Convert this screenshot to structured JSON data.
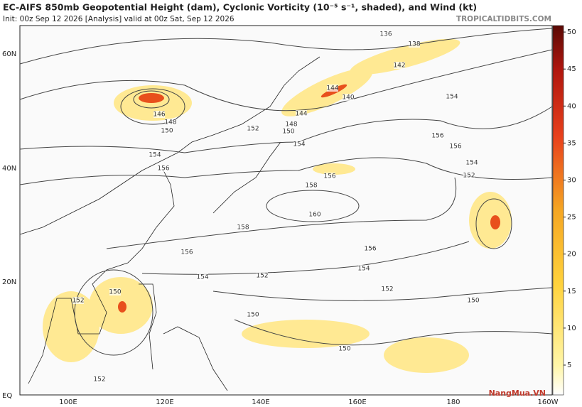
{
  "header": {
    "title": "EC-AIFS 850mb Geopotential Height (dam), Cyclonic Vorticity (10⁻⁵ s⁻¹, shaded), and Wind (kt)",
    "init": "Init: 00z Sep 12 2026   [Analysis]   valid at 00z Sat, Sep 12 2026",
    "source": "TROPICALTIDBITS.COM"
  },
  "map": {
    "lat_labels": [
      "60N",
      "40N",
      "20N",
      "EQ"
    ],
    "lon_labels": [
      "100E",
      "120E",
      "140E",
      "160E",
      "180",
      "160W"
    ],
    "contour_labels": [
      136,
      138,
      142,
      144,
      140,
      154,
      146,
      148,
      150,
      152,
      150,
      148,
      144,
      154,
      156,
      156,
      154,
      152,
      154,
      156,
      156,
      158,
      160,
      158,
      156,
      156,
      154,
      154,
      152,
      152,
      150,
      152,
      150,
      150,
      150,
      152
    ]
  },
  "colorbar": {
    "ticks": [
      5,
      10,
      15,
      20,
      25,
      30,
      35,
      40,
      45,
      50
    ]
  },
  "watermark": "NangMua.VN"
}
